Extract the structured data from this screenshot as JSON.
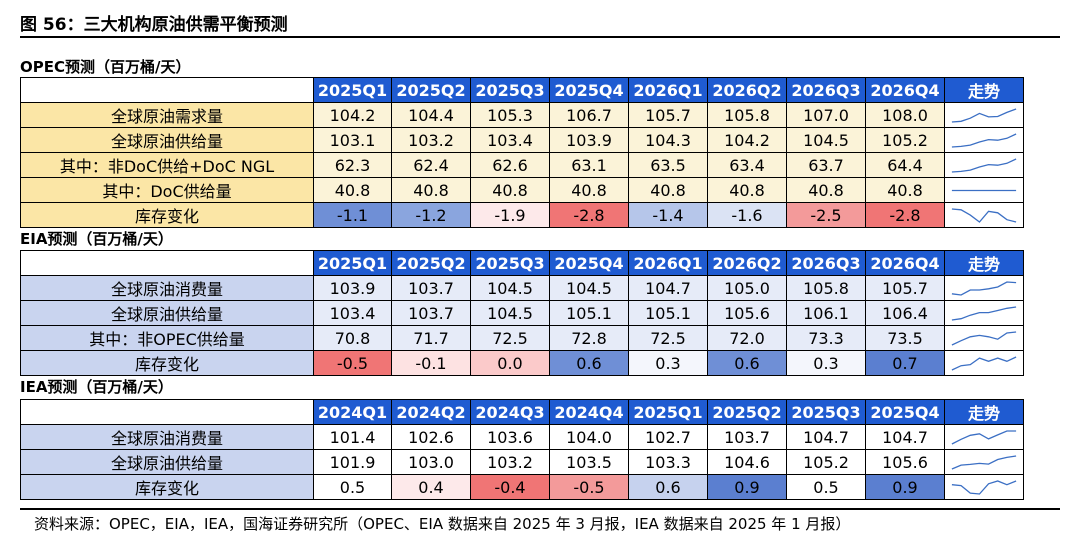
{
  "figure_title": "图 56：三大机构原油供需平衡预测",
  "source_note": "资料来源：OPEC，EIA，IEA，国海证券研究所（OPEC、EIA 数据来自 2025 年 3 月报，IEA 数据来自 2025 年 1 月报）",
  "trend_label": "走势",
  "colors": {
    "header_blue": "#1f5bd1",
    "opec_label_bg": "#fbe6a6",
    "eia_iea_label_bg": "#c9d4ef",
    "sparkline": "#3b6fc4"
  },
  "sections": [
    {
      "key": "opec",
      "title": "OPEC预测（百万桶/天）",
      "periods": [
        "2025Q1",
        "2025Q2",
        "2025Q3",
        "2025Q4",
        "2026Q1",
        "2026Q2",
        "2026Q3",
        "2026Q4"
      ],
      "rows": [
        {
          "label": "全球原油需求量",
          "values": [
            "104.2",
            "104.4",
            "105.3",
            "106.7",
            "105.7",
            "105.8",
            "107.0",
            "108.0"
          ],
          "cell_colors": [
            "#fbf3d8",
            "#fbf3d8",
            "#fbf3d8",
            "#fbf3d8",
            "#fbf3d8",
            "#fbf3d8",
            "#fbf3d8",
            "#fbf3d8"
          ]
        },
        {
          "label": "全球原油供给量",
          "values": [
            "103.1",
            "103.2",
            "103.4",
            "103.9",
            "104.3",
            "104.2",
            "104.5",
            "105.2"
          ],
          "cell_colors": [
            "#fbf3d8",
            "#fbf3d8",
            "#fbf3d8",
            "#fbf3d8",
            "#fbf3d8",
            "#fbf3d8",
            "#fbf3d8",
            "#fbf3d8"
          ]
        },
        {
          "label": "其中：非DoC供给+DoC NGL",
          "values": [
            "62.3",
            "62.4",
            "62.6",
            "63.1",
            "63.5",
            "63.4",
            "63.7",
            "64.4"
          ],
          "cell_colors": [
            "#fbf3d8",
            "#fbf3d8",
            "#fbf3d8",
            "#fbf3d8",
            "#fbf3d8",
            "#fbf3d8",
            "#fbf3d8",
            "#fbf3d8"
          ]
        },
        {
          "label": "其中：DoC供给量",
          "values": [
            "40.8",
            "40.8",
            "40.8",
            "40.8",
            "40.8",
            "40.8",
            "40.8",
            "40.8"
          ],
          "cell_colors": [
            "#fbf3d8",
            "#fbf3d8",
            "#fbf3d8",
            "#fbf3d8",
            "#fbf3d8",
            "#fbf3d8",
            "#fbf3d8",
            "#fbf3d8"
          ]
        },
        {
          "label": "库存变化",
          "values": [
            "-1.1",
            "-1.2",
            "-1.9",
            "-2.8",
            "-1.4",
            "-1.6",
            "-2.5",
            "-2.8"
          ],
          "cell_colors": [
            "#6f8fd6",
            "#8aa5de",
            "#fde9ea",
            "#f07575",
            "#b6c6ea",
            "#dbe3f4",
            "#f39a9a",
            "#f07575"
          ]
        }
      ]
    },
    {
      "key": "eia",
      "title": "EIA预测（百万桶/天）",
      "periods": [
        "2025Q1",
        "2025Q2",
        "2025Q3",
        "2025Q4",
        "2026Q1",
        "2026Q2",
        "2026Q3",
        "2026Q4"
      ],
      "rows": [
        {
          "label": "全球原油消费量",
          "values": [
            "103.9",
            "103.7",
            "104.5",
            "104.5",
            "104.7",
            "105.0",
            "105.8",
            "105.7"
          ],
          "cell_colors": [
            "#e6ebf8",
            "#e6ebf8",
            "#e6ebf8",
            "#e6ebf8",
            "#e6ebf8",
            "#e6ebf8",
            "#e6ebf8",
            "#e6ebf8"
          ]
        },
        {
          "label": "全球原油供给量",
          "values": [
            "103.4",
            "103.7",
            "104.5",
            "105.1",
            "105.1",
            "105.6",
            "106.1",
            "106.4"
          ],
          "cell_colors": [
            "#e6ebf8",
            "#e6ebf8",
            "#e6ebf8",
            "#e6ebf8",
            "#e6ebf8",
            "#e6ebf8",
            "#e6ebf8",
            "#e6ebf8"
          ]
        },
        {
          "label": "其中：非OPEC供给量",
          "values": [
            "70.8",
            "71.7",
            "72.5",
            "72.8",
            "72.5",
            "72.0",
            "73.3",
            "73.5"
          ],
          "cell_colors": [
            "#e6ebf8",
            "#e6ebf8",
            "#e6ebf8",
            "#e6ebf8",
            "#e6ebf8",
            "#e6ebf8",
            "#e6ebf8",
            "#e6ebf8"
          ]
        },
        {
          "label": "库存变化",
          "values": [
            "-0.5",
            "-0.1",
            "0.0",
            "0.6",
            "0.3",
            "0.6",
            "0.3",
            "0.7"
          ],
          "cell_colors": [
            "#f07575",
            "#fde2e2",
            "#fbcaca",
            "#6f8fd6",
            "#f4f6fc",
            "#6f8fd6",
            "#f4f6fc",
            "#5b7fd0"
          ]
        }
      ]
    },
    {
      "key": "iea",
      "title": "IEA预测（百万桶/天）",
      "periods": [
        "2024Q1",
        "2024Q2",
        "2024Q3",
        "2024Q4",
        "2025Q1",
        "2025Q2",
        "2025Q3",
        "2025Q4"
      ],
      "rows": [
        {
          "label": "全球原油消费量",
          "values": [
            "101.4",
            "102.6",
            "103.6",
            "104.0",
            "102.7",
            "103.7",
            "104.7",
            "104.7"
          ],
          "cell_colors": [
            "#ffffff",
            "#ffffff",
            "#ffffff",
            "#ffffff",
            "#ffffff",
            "#ffffff",
            "#ffffff",
            "#ffffff"
          ]
        },
        {
          "label": "全球原油供给量",
          "values": [
            "101.9",
            "103.0",
            "103.2",
            "103.5",
            "103.3",
            "104.6",
            "105.2",
            "105.6"
          ],
          "cell_colors": [
            "#ffffff",
            "#ffffff",
            "#ffffff",
            "#ffffff",
            "#ffffff",
            "#ffffff",
            "#ffffff",
            "#ffffff"
          ]
        },
        {
          "label": "库存变化",
          "values": [
            "0.5",
            "0.4",
            "-0.4",
            "-0.5",
            "0.6",
            "0.9",
            "0.5",
            "0.9"
          ],
          "cell_colors": [
            "#ffffff",
            "#fde9ea",
            "#f07575",
            "#f39a9a",
            "#c6d2ee",
            "#5b7fd0",
            "#ffffff",
            "#5b7fd0"
          ]
        }
      ]
    }
  ]
}
